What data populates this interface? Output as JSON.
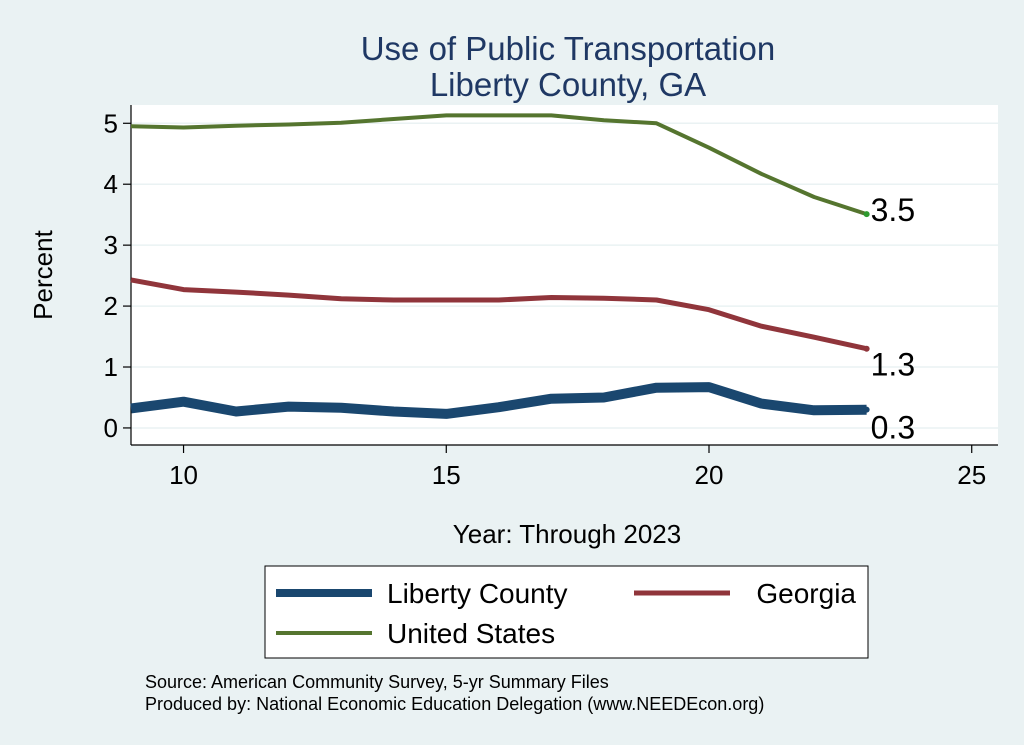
{
  "chart_data": {
    "type": "line",
    "title": "Use of Public Transportation",
    "subtitle": "Liberty County, GA",
    "xlabel": "Year: Through 2023",
    "ylabel": "Percent",
    "xlim": [
      9,
      25
    ],
    "ylim": [
      0,
      5
    ],
    "xticks": [
      10,
      15,
      20,
      25
    ],
    "yticks": [
      0,
      1,
      2,
      3,
      4,
      5
    ],
    "grid": true,
    "legend_position": "bottom",
    "series": [
      {
        "name": "Liberty County",
        "color": "#1a476f",
        "x": [
          9,
          10,
          11,
          12,
          13,
          14,
          15,
          16,
          17,
          18,
          19,
          20,
          21,
          22,
          23
        ],
        "y": [
          0.32,
          0.43,
          0.27,
          0.35,
          0.33,
          0.27,
          0.23,
          0.34,
          0.48,
          0.5,
          0.66,
          0.67,
          0.4,
          0.29,
          0.3
        ],
        "end_label": "0.3"
      },
      {
        "name": "Georgia",
        "color": "#90353b",
        "x": [
          9,
          10,
          11,
          12,
          13,
          14,
          15,
          16,
          17,
          18,
          19,
          20,
          21,
          22,
          23
        ],
        "y": [
          2.43,
          2.27,
          2.23,
          2.18,
          2.12,
          2.1,
          2.1,
          2.1,
          2.14,
          2.13,
          2.1,
          1.94,
          1.67,
          1.49,
          1.3
        ],
        "end_label": "1.3"
      },
      {
        "name": "United States",
        "color": "#55752f",
        "x": [
          9,
          10,
          11,
          12,
          13,
          14,
          15,
          16,
          17,
          18,
          19,
          20,
          21,
          22,
          23
        ],
        "y": [
          4.95,
          4.93,
          4.96,
          4.98,
          5.01,
          5.07,
          5.13,
          5.13,
          5.13,
          5.05,
          5.0,
          4.6,
          4.17,
          3.79,
          3.51
        ],
        "end_label": "3.5"
      }
    ],
    "legend": [
      "Liberty County",
      "Georgia",
      "United States"
    ],
    "notes": [
      "Source: American Community Survey, 5-yr Summary Files",
      "Produced by: National Economic Education Delegation (www.NEEDEcon.org)"
    ]
  }
}
